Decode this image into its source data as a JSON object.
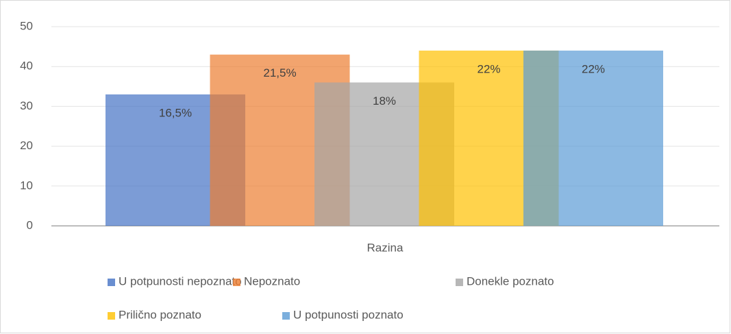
{
  "chart_data": {
    "type": "bar",
    "categories": [
      "Razina"
    ],
    "series": [
      {
        "name": "U potpunosti nepoznato",
        "color": "#4472c4",
        "values": [
          33
        ],
        "value_labels": [
          "16,5%"
        ]
      },
      {
        "name": "Nepoznato",
        "color": "#ed7d31",
        "values": [
          43
        ],
        "value_labels": [
          "21,5%"
        ]
      },
      {
        "name": "Donekle poznato",
        "color": "#a5a5a5",
        "values": [
          36
        ],
        "value_labels": [
          "18%"
        ]
      },
      {
        "name": "Prilično poznato",
        "color": "#ffc000",
        "values": [
          44
        ],
        "value_labels": [
          "22%"
        ]
      },
      {
        "name": "U potpunosti poznato",
        "color": "#5b9bd5",
        "values": [
          44
        ],
        "value_labels": [
          "22%"
        ]
      }
    ],
    "ylim": [
      0,
      50
    ],
    "yticks": [
      0,
      10,
      20,
      30,
      40,
      50
    ],
    "grid": true,
    "legend": "bottom"
  }
}
